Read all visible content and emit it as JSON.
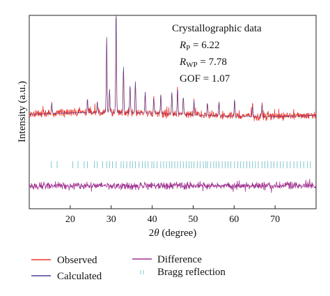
{
  "chart_data": {
    "type": "line",
    "xlabel_prefix": "2",
    "xlabel_symbol": "θ",
    "xlabel_suffix": " (degree)",
    "ylabel": "Intensity (a.u.)",
    "xlim": [
      10,
      80
    ],
    "x_ticks": [
      20,
      30,
      40,
      50,
      60,
      70
    ],
    "grid": false,
    "annotation": {
      "title": "Crystallographic data",
      "rp_label": "R",
      "rp_sub": "P",
      "rp_value": " = 6.22",
      "rwp_label": "R",
      "rwp_sub": "WP",
      "rwp_value": " = 7.78",
      "gof": "GOF = 1.07"
    },
    "series": [
      {
        "name": "Observed",
        "color": "#e8372f"
      },
      {
        "name": "Calculated",
        "color": "#4a3f9a"
      },
      {
        "name": "Difference",
        "color": "#a0308f"
      },
      {
        "name": "Bragg reflection",
        "color": "#7fc6cf"
      }
    ],
    "peaks": [
      {
        "x": 15.5,
        "h": 0.1
      },
      {
        "x": 24.2,
        "h": 0.13
      },
      {
        "x": 26.6,
        "h": 0.1
      },
      {
        "x": 28.9,
        "h": 0.72
      },
      {
        "x": 29.6,
        "h": 0.22
      },
      {
        "x": 31.2,
        "h": 1.0
      },
      {
        "x": 33.0,
        "h": 0.45
      },
      {
        "x": 34.6,
        "h": 0.26
      },
      {
        "x": 35.9,
        "h": 0.3
      },
      {
        "x": 38.3,
        "h": 0.2
      },
      {
        "x": 40.4,
        "h": 0.14
      },
      {
        "x": 42.1,
        "h": 0.18
      },
      {
        "x": 44.8,
        "h": 0.22
      },
      {
        "x": 46.2,
        "h": 0.25
      },
      {
        "x": 47.6,
        "h": 0.17
      },
      {
        "x": 50.2,
        "h": 0.14
      },
      {
        "x": 53.5,
        "h": 0.12
      },
      {
        "x": 56.3,
        "h": 0.13
      },
      {
        "x": 60.1,
        "h": 0.16
      },
      {
        "x": 64.5,
        "h": 0.1
      },
      {
        "x": 66.8,
        "h": 0.11
      }
    ],
    "bragg_positions": [
      15.4,
      16.8,
      20.6,
      21.9,
      23.4,
      24.2,
      25.9,
      26.6,
      27.9,
      28.9,
      29.6,
      30.3,
      31.2,
      32.4,
      33.0,
      33.8,
      34.6,
      35.2,
      35.9,
      36.8,
      37.6,
      38.3,
      39.0,
      39.9,
      40.4,
      41.2,
      42.1,
      42.8,
      43.5,
      44.2,
      44.8,
      45.5,
      46.2,
      46.9,
      47.6,
      48.3,
      49.0,
      49.6,
      50.2,
      51.0,
      51.7,
      52.5,
      53.1,
      53.5,
      54.3,
      55.0,
      55.6,
      56.3,
      57.1,
      57.8,
      58.5,
      59.2,
      60.1,
      60.9,
      61.6,
      62.3,
      63.1,
      63.8,
      64.5,
      65.2,
      65.9,
      66.8,
      67.5,
      68.2,
      69.0,
      69.7,
      70.5,
      71.3,
      72.0,
      72.9,
      73.7,
      74.6,
      75.4,
      76.2,
      77.0,
      77.9,
      78.6
    ]
  }
}
